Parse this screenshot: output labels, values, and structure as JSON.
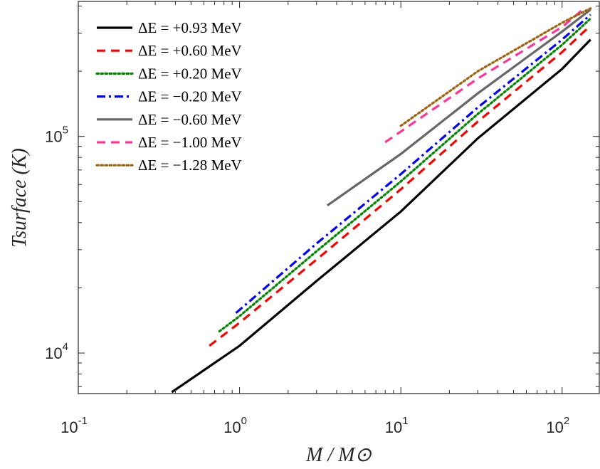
{
  "chart_data": {
    "type": "line",
    "xscale": "log",
    "yscale": "log",
    "xlim": [
      0.1,
      170
    ],
    "ylim": [
      6500,
      420000
    ],
    "xticks": [
      {
        "value": 0.1,
        "base": "10",
        "exp": "-1"
      },
      {
        "value": 1,
        "base": "10",
        "exp": "0"
      },
      {
        "value": 10,
        "base": "10",
        "exp": "1"
      },
      {
        "value": 100,
        "base": "10",
        "exp": "2"
      }
    ],
    "yticks": [
      {
        "value": 10000,
        "base": "10",
        "exp": "4"
      },
      {
        "value": 100000,
        "base": "10",
        "exp": "5"
      }
    ],
    "xlabel": "M / M⊙",
    "ylabel": "Tsurface (K)",
    "legend_position": "top-left",
    "series": [
      {
        "name": "ΔE = +0.93 MeV",
        "color": "#000000",
        "dash": "solid",
        "points": [
          [
            0.38,
            6600
          ],
          [
            1,
            10800
          ],
          [
            3,
            21500
          ],
          [
            10,
            45000
          ],
          [
            30,
            98000
          ],
          [
            100,
            205000
          ],
          [
            150,
            280000
          ]
        ]
      },
      {
        "name": "ΔE = +0.60 MeV",
        "color": "#ff0000",
        "dash": "dash",
        "points": [
          [
            0.65,
            10800
          ],
          [
            1,
            13800
          ],
          [
            3,
            27000
          ],
          [
            10,
            57000
          ],
          [
            30,
            117000
          ],
          [
            100,
            245000
          ],
          [
            150,
            325000
          ]
        ]
      },
      {
        "name": "ΔE = +0.20 MeV",
        "color": "#008800",
        "dash": "dot",
        "points": [
          [
            0.75,
            12600
          ],
          [
            1,
            14800
          ],
          [
            3,
            29500
          ],
          [
            10,
            62000
          ],
          [
            30,
            127000
          ],
          [
            100,
            265000
          ],
          [
            150,
            350000
          ]
        ]
      },
      {
        "name": "ΔE = −0.20 MeV",
        "color": "#0000ff",
        "dash": "dashdot",
        "points": [
          [
            0.95,
            15300
          ],
          [
            3,
            32000
          ],
          [
            10,
            67000
          ],
          [
            30,
            136000
          ],
          [
            100,
            280000
          ],
          [
            150,
            365000
          ]
        ]
      },
      {
        "name": "ΔE = −0.60 MeV",
        "color": "#666666",
        "dash": "solid",
        "points": [
          [
            3.5,
            48000
          ],
          [
            10,
            83000
          ],
          [
            30,
            158000
          ],
          [
            100,
            305000
          ],
          [
            150,
            385000
          ]
        ]
      },
      {
        "name": "ΔE = −1.00 MeV",
        "color": "#ff3399",
        "dash": "dash",
        "points": [
          [
            8,
            94000
          ],
          [
            30,
            185000
          ],
          [
            100,
            320000
          ],
          [
            140,
            395000
          ]
        ]
      },
      {
        "name": "ΔE = −1.28 MeV",
        "color": "#a0620a",
        "dash": "dot",
        "points": [
          [
            10,
            112000
          ],
          [
            30,
            200000
          ],
          [
            100,
            335000
          ],
          [
            150,
            390000
          ]
        ]
      }
    ]
  }
}
